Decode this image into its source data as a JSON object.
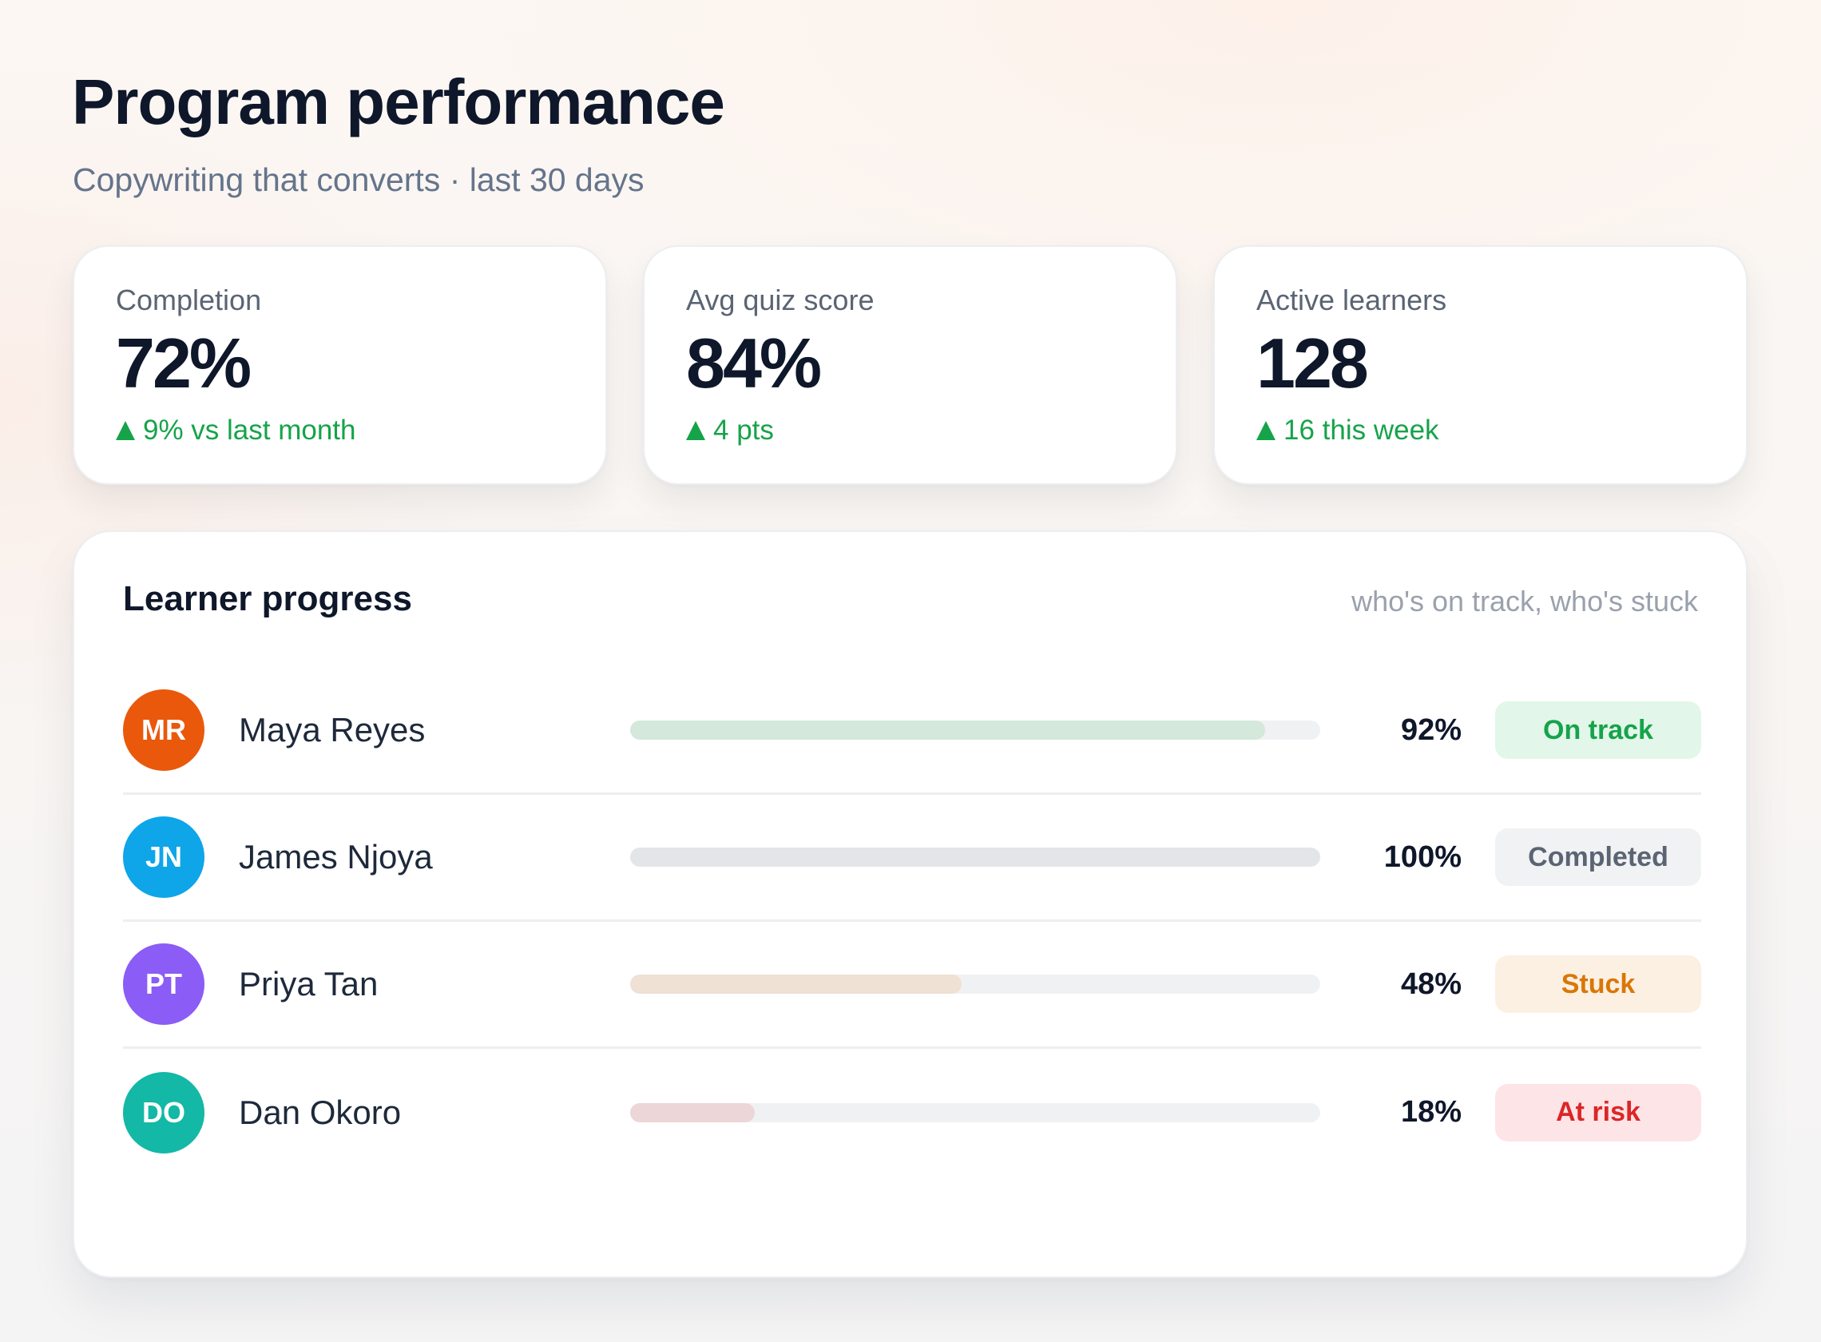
{
  "header": {
    "title": "Program performance",
    "subtitle": "Copywriting that converts · last 30 days"
  },
  "stats": [
    {
      "label": "Completion",
      "value": "72%",
      "delta": "9% vs last month",
      "trend_icon": "triangle-up-icon"
    },
    {
      "label": "Avg quiz score",
      "value": "84%",
      "delta": "4 pts",
      "trend_icon": "triangle-up-icon"
    },
    {
      "label": "Active learners",
      "value": "128",
      "delta": "16 this week",
      "trend_icon": "triangle-up-icon"
    }
  ],
  "progress": {
    "title": "Learner progress",
    "hint": "who's on track, who's stuck",
    "learners": [
      {
        "initials": "MR",
        "name": "Maya Reyes",
        "percent_label": "92%",
        "progress": 0.92,
        "status": "On track",
        "avatar_color": "#ea580c",
        "bar_color": "#d4e8dc",
        "badge_bg": "#e2f6e9",
        "badge_color": "#16a34a"
      },
      {
        "initials": "JN",
        "name": "James Njoya",
        "percent_label": "100%",
        "progress": 1.0,
        "status": "Completed",
        "avatar_color": "#0ea5e9",
        "bar_color": "#e3e5e8",
        "badge_bg": "#f1f2f4",
        "badge_color": "#5b6473"
      },
      {
        "initials": "PT",
        "name": "Priya Tan",
        "percent_label": "48%",
        "progress": 0.48,
        "status": "Stuck",
        "avatar_color": "#8b5cf6",
        "bar_color": "#efe1d3",
        "badge_bg": "#fcf0e3",
        "badge_color": "#d97706"
      },
      {
        "initials": "DO",
        "name": "Dan Okoro",
        "percent_label": "18%",
        "progress": 0.18,
        "status": "At risk",
        "avatar_color": "#14b8a6",
        "bar_color": "#ecd6d8",
        "badge_bg": "#fde4e6",
        "badge_color": "#dc2626"
      }
    ]
  }
}
